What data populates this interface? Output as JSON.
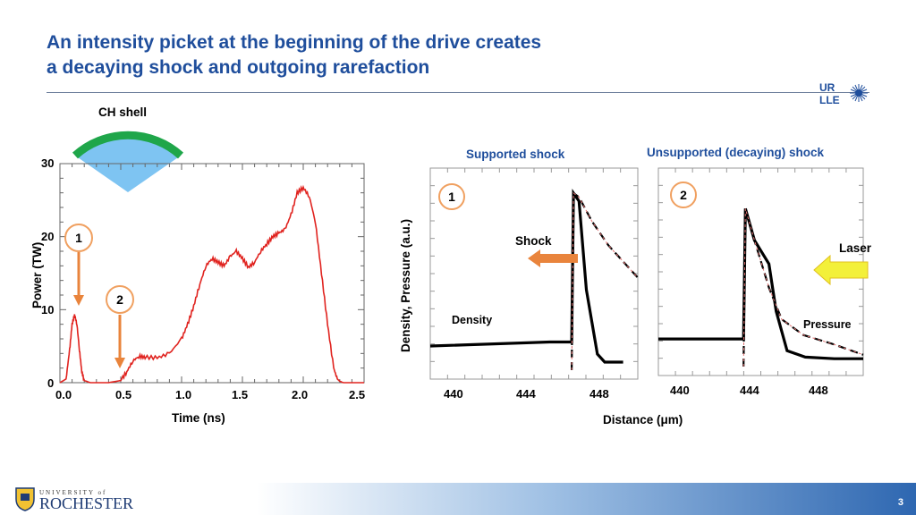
{
  "title": {
    "line1": "An intensity picket at the beginning of the drive creates",
    "line2": "a decaying shock and outgoing rarefaction"
  },
  "logo": {
    "line1": "UR",
    "line2": "LLE"
  },
  "colors": {
    "title": "#1f4e9c",
    "pulse": "#e0231f",
    "shell_fill": "#7ec4f2",
    "shell_rim": "#1fa64a",
    "arrow": "#e9843c",
    "laser_arrow": "#f3f03a"
  },
  "left_plot": {
    "shell_label": "CH shell",
    "marker1": "1",
    "marker2": "2"
  },
  "right_plot": {
    "panel1_title": "Supported shock",
    "panel2_title": "Unsupported (decaying) shock",
    "marker1": "1",
    "marker2": "2",
    "shock_label": "Shock",
    "laser_label": "Laser",
    "density_label": "Density",
    "pressure_label": "Pressure",
    "ylabel": "Density, Pressure  (a.u.)",
    "xlabel": "Distance (μm)",
    "panel1_ticks": [
      "440",
      "444",
      "448"
    ],
    "panel2_ticks": [
      "440",
      "444",
      "448"
    ]
  },
  "chart_data": [
    {
      "type": "line",
      "xlabel": "Time (ns)",
      "ylabel": "Power (TW)",
      "xlim": [
        0.0,
        2.5
      ],
      "ylim": [
        0,
        30
      ],
      "x_ticks": [
        "0.0",
        "0.5",
        "1.0",
        "1.5",
        "2.0",
        "2.5"
      ],
      "y_ticks": [
        "0",
        "10",
        "20",
        "30"
      ],
      "series": [
        {
          "x": [
            0.0,
            0.05,
            0.08,
            0.1,
            0.12,
            0.14,
            0.16,
            0.18,
            0.2,
            0.25,
            0.3,
            0.4,
            0.5,
            0.55,
            0.6,
            0.65,
            0.7,
            0.8,
            0.9,
            1.0,
            1.05,
            1.1,
            1.15,
            1.2,
            1.25,
            1.3,
            1.35,
            1.4,
            1.45,
            1.5,
            1.55,
            1.6,
            1.65,
            1.7,
            1.75,
            1.8,
            1.85,
            1.9,
            1.95,
            2.0,
            2.05,
            2.1,
            2.15,
            2.2,
            2.25,
            2.28,
            2.3,
            2.33,
            2.38,
            2.45,
            2.5
          ],
          "y": [
            0.0,
            0.5,
            4.5,
            8.0,
            9.3,
            8.0,
            4.5,
            1.5,
            0.3,
            0.0,
            0.0,
            0.0,
            0.3,
            1.5,
            3.0,
            3.6,
            3.5,
            3.4,
            4.0,
            6.0,
            8.0,
            10.5,
            13.5,
            16.0,
            17.0,
            16.5,
            16.0,
            17.3,
            18.0,
            17.0,
            15.8,
            16.5,
            18.0,
            19.0,
            20.0,
            20.5,
            21.0,
            23.0,
            26.0,
            26.7,
            25.5,
            22.0,
            15.0,
            8.0,
            2.0,
            0.5,
            0.2,
            0.0,
            0.0,
            0.0,
            0.0
          ]
        }
      ]
    },
    {
      "type": "line",
      "xlabel": "Distance (μm)",
      "ylabel": "Density, Pressure  (a.u.)",
      "x_ticks": [
        "440",
        "444",
        "448"
      ],
      "series": [
        {
          "name": "Density",
          "x": [
            438.5,
            445,
            446.2,
            446.3,
            446.6,
            447,
            447.6,
            448,
            449
          ],
          "y": [
            0.3,
            0.35,
            0.35,
            2.2,
            2.1,
            1.0,
            0.2,
            0.1,
            0.1
          ]
        },
        {
          "name": "Pressure",
          "x": [
            446.2,
            446.3,
            446.6,
            447.3,
            448.2,
            449.8
          ],
          "y": [
            0.0,
            2.2,
            2.15,
            1.85,
            1.55,
            1.15
          ]
        }
      ]
    },
    {
      "type": "line",
      "xlabel": "Distance (μm)",
      "x_ticks": [
        "440",
        "444",
        "448"
      ],
      "series": [
        {
          "name": "Density",
          "x": [
            438.5,
            443.2,
            443.3,
            443.8,
            444.6,
            445.0,
            445.6,
            446.6,
            448.2,
            449.8
          ],
          "y": [
            0.35,
            0.35,
            2.0,
            1.6,
            1.3,
            0.7,
            0.2,
            0.12,
            0.1,
            0.1
          ]
        },
        {
          "name": "Pressure",
          "x": [
            443.2,
            443.3,
            443.8,
            444.6,
            445.3,
            446.5,
            448.2,
            449.8
          ],
          "y": [
            0.0,
            2.0,
            1.6,
            1.0,
            0.6,
            0.4,
            0.28,
            0.15
          ]
        }
      ]
    }
  ]
}
